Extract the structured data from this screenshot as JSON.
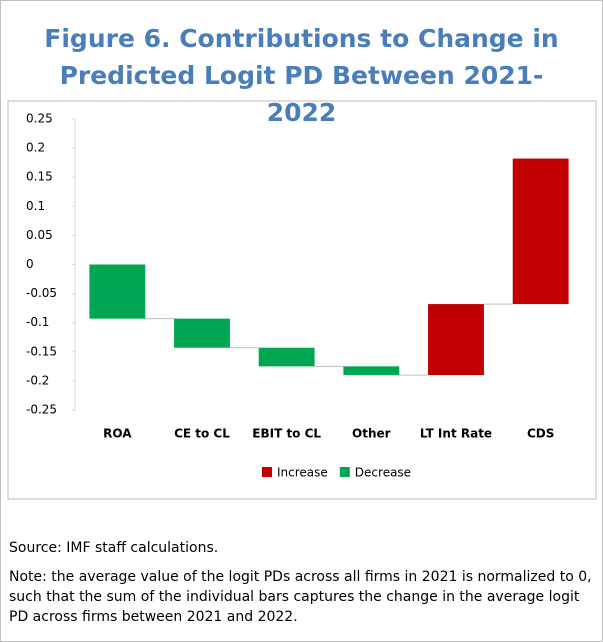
{
  "chart_data": {
    "type": "waterfall",
    "title": "Figure 6. Contributions to Change in Predicted Logit PD Between 2021-2022",
    "categories": [
      "ROA",
      "CE to CL",
      "EBIT to CL",
      "Other",
      "LT Int Rate",
      "CDS"
    ],
    "series": [
      {
        "name": "Increase",
        "color": "#c00000",
        "values": [
          null,
          null,
          null,
          null,
          0.122,
          0.25
        ]
      },
      {
        "name": "Decrease",
        "color": "#00a651",
        "values": [
          -0.093,
          -0.05,
          -0.032,
          -0.015,
          null,
          null
        ]
      }
    ],
    "ylim": [
      -0.25,
      0.25
    ],
    "yticks": [
      0.25,
      0.2,
      0.15,
      0.1,
      0.05,
      0,
      -0.05,
      -0.1,
      -0.15,
      -0.2,
      -0.25
    ],
    "grid": false,
    "legend": "bottom",
    "source": "Source: IMF staff calculations.",
    "note": "Note: the average value of the logit PDs across all firms in 2021 is normalized to 0, such that the sum of the individual bars captures the change in the average logit PD across firms between 2021 and 2022."
  }
}
